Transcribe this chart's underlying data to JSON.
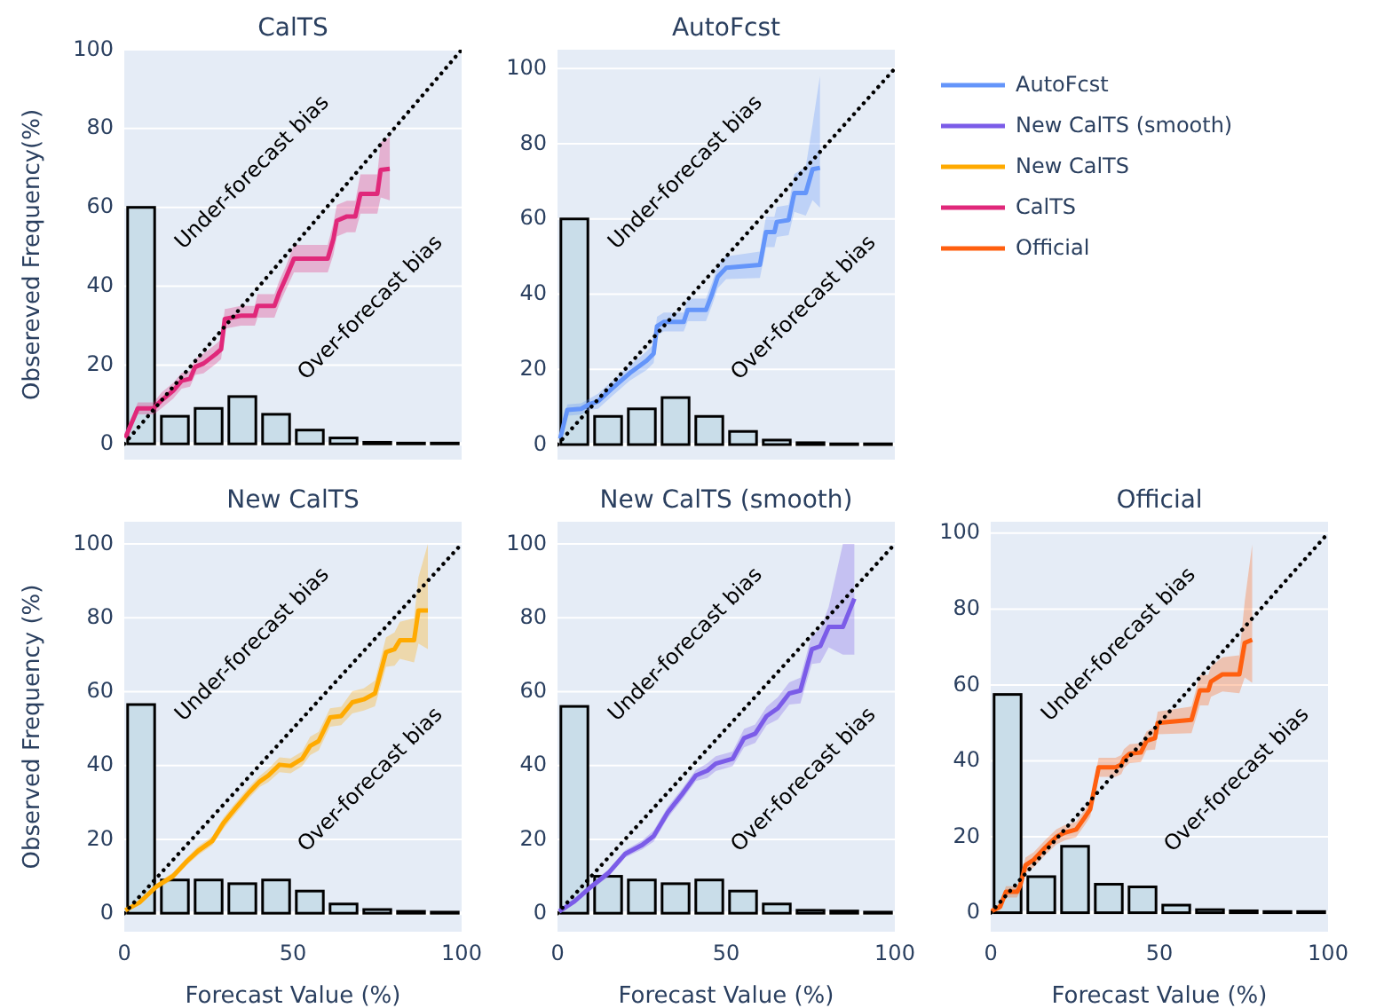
{
  "chart_data": [
    {
      "type": "histogram",
      "title": "CalTS",
      "ylabel": "Obsereved Frequency(%)",
      "bins": [
        0,
        10,
        20,
        30,
        40,
        50,
        60,
        70,
        80,
        90,
        100
      ],
      "values": [
        60,
        7,
        9,
        12,
        7.5,
        3.5,
        1.5,
        0.4,
        0.2,
        0.2
      ],
      "color": "#c9dde9",
      "xlim": [
        0,
        100
      ],
      "ylim": [
        -4,
        100
      ],
      "yticks": [
        0,
        20,
        40,
        60,
        80,
        100
      ],
      "grid": "y",
      "tick_labels": "y",
      "series": [
        {
          "type": "line",
          "name": "CalTS",
          "color": "#e0287a",
          "x": [
            0.3,
            4,
            8.7,
            11,
            14.5,
            17,
            19.5,
            21,
            23.5,
            27,
            28.7,
            29.8,
            34.5,
            38.7,
            39.5,
            44.5,
            46,
            48,
            50.3,
            60.3,
            62,
            63,
            66,
            68.5,
            70,
            75,
            76,
            78.7
          ],
          "values": [
            1.5,
            9,
            9,
            11,
            13.5,
            16,
            16.5,
            19.5,
            20.4,
            22.7,
            24,
            31.7,
            32.5,
            32.5,
            35,
            35,
            38.5,
            42.3,
            47,
            47,
            52,
            56.6,
            57.7,
            57.7,
            63.4,
            63.4,
            69.5,
            69.8
          ],
          "lower": [
            1,
            7.5,
            7.5,
            9,
            11.5,
            14,
            14.5,
            17.5,
            17.9,
            20.2,
            21.5,
            29.2,
            30,
            30,
            32,
            32,
            35.5,
            39.3,
            43.5,
            43.5,
            48,
            52.6,
            53.7,
            53.7,
            58.4,
            58.4,
            62.5,
            61.8
          ],
          "upper": [
            2,
            10.5,
            10.5,
            13,
            15.5,
            18,
            18.5,
            21.5,
            22.9,
            25.2,
            26.5,
            34.2,
            35,
            35,
            38,
            38,
            41.5,
            45.3,
            50.5,
            50.5,
            56,
            60.6,
            61.7,
            61.7,
            68.4,
            68.4,
            76.5,
            77.8
          ]
        },
        {
          "type": "line",
          "color": "#000000",
          "line_style": "dotted",
          "x": [
            0,
            100
          ],
          "values": [
            0,
            100
          ]
        }
      ],
      "annotations": [
        "Under-forecast bias",
        "Over-forecast bias"
      ]
    },
    {
      "type": "histogram",
      "title": "AutoFcst",
      "bins": [
        0,
        10,
        20,
        30,
        40,
        50,
        60,
        70,
        80,
        90,
        100
      ],
      "values": [
        60,
        7.5,
        9.5,
        12.5,
        7.5,
        3.5,
        1.2,
        0.5,
        0.2,
        0.2
      ],
      "color": "#c9dde9",
      "xlim": [
        0,
        100
      ],
      "ylim": [
        -4,
        105
      ],
      "yticks": [
        0,
        20,
        40,
        60,
        80,
        100
      ],
      "grid": "y",
      "tick_labels": "y",
      "legend": "right",
      "series": [
        {
          "type": "line",
          "name": "AutoFcst",
          "color": "#6495fa",
          "x": [
            0.8,
            2.9,
            7,
            9.6,
            12,
            16.3,
            21.4,
            26.4,
            28.5,
            29.5,
            31.5,
            37.4,
            38.6,
            44,
            45.8,
            47.5,
            50,
            60,
            61.8,
            64.3,
            65,
            68.5,
            70.2,
            73.6,
            75.6,
            77.8
          ],
          "values": [
            1.6,
            9.2,
            9.5,
            10.8,
            11.5,
            15,
            19,
            22.3,
            24.2,
            31.5,
            32.6,
            32.6,
            35.8,
            35.8,
            40,
            44.6,
            47,
            47.8,
            56.5,
            56.5,
            59.2,
            59.7,
            66.9,
            66.9,
            73.2,
            73.6
          ],
          "lower": [
            1.1,
            7.7,
            8,
            9.3,
            9.5,
            13,
            17,
            19.8,
            21.7,
            29,
            30.1,
            30.1,
            32.8,
            32.8,
            37,
            41.6,
            44,
            44.3,
            52.5,
            52.5,
            55.2,
            55.7,
            61.9,
            60.9,
            65,
            63
          ],
          "upper": [
            2.1,
            10.7,
            11,
            12.3,
            13.5,
            17,
            21,
            24.8,
            26.7,
            34,
            35.1,
            35.1,
            38.8,
            38.8,
            43,
            47.6,
            50,
            51.3,
            60.5,
            60.5,
            63.2,
            63.7,
            71.9,
            74,
            85,
            98
          ]
        },
        {
          "type": "line",
          "color": "#000000",
          "line_style": "dotted",
          "x": [
            0,
            100
          ],
          "values": [
            0,
            100
          ]
        }
      ],
      "annotations": [
        "Under-forecast bias",
        "Over-forecast bias"
      ]
    },
    {
      "type": "histogram",
      "title": "New CalTS",
      "xlabel": "Forecast Value (%)",
      "ylabel": "Observed Frequency (%)",
      "bins": [
        0,
        10,
        20,
        30,
        40,
        50,
        60,
        70,
        80,
        90,
        100
      ],
      "values": [
        56.5,
        9,
        9,
        8,
        9,
        6,
        2.5,
        1,
        0.5,
        0.3
      ],
      "color": "#c9dde9",
      "xlim": [
        0,
        100
      ],
      "xticks": [
        0,
        50,
        100
      ],
      "ylim": [
        -5,
        106
      ],
      "yticks": [
        0,
        20,
        40,
        60,
        80,
        100
      ],
      "grid": "y",
      "series": [
        {
          "type": "line",
          "name": "New CalTS",
          "color": "#ffaa00",
          "x": [
            0.3,
            4.5,
            9.5,
            14.5,
            18.6,
            21.9,
            26.1,
            29.4,
            32.7,
            36.9,
            40.2,
            42.7,
            46,
            49.3,
            52.7,
            55.1,
            57.6,
            61,
            64.3,
            67.6,
            71,
            74.3,
            77.6,
            80.1,
            81.7,
            85.9,
            87.2,
            90
          ],
          "values": [
            0.8,
            2.9,
            7.2,
            10.1,
            14.1,
            16.9,
            19.6,
            24.4,
            28.1,
            32.6,
            35.7,
            37.3,
            40.2,
            39.9,
            41.8,
            45.3,
            46.6,
            53,
            53.4,
            57.1,
            57.9,
            59.5,
            70.7,
            71.5,
            73.9,
            73.9,
            82,
            82
          ],
          "lower": [
            0.5,
            2.4,
            6.4,
            9.1,
            13.1,
            15.7,
            18.4,
            22.9,
            26.6,
            31.1,
            34.2,
            35.5,
            38.2,
            37.9,
            39.8,
            42.8,
            44.1,
            50.5,
            50.9,
            54.1,
            54.9,
            56,
            66.7,
            67,
            68.9,
            67.9,
            73,
            71.5
          ],
          "upper": [
            1.1,
            3.4,
            8,
            11.1,
            15.1,
            18.1,
            20.8,
            25.9,
            29.6,
            34.1,
            37.2,
            39.1,
            42.2,
            41.9,
            43.8,
            47.8,
            49.1,
            55.5,
            55.9,
            60.1,
            60.9,
            63,
            74.7,
            76,
            78.9,
            79.9,
            91,
            100
          ]
        },
        {
          "type": "line",
          "color": "#000000",
          "line_style": "dotted",
          "x": [
            0,
            100
          ],
          "values": [
            0,
            100
          ]
        }
      ],
      "annotations": [
        "Under-forecast bias",
        "Over-forecast bias"
      ]
    },
    {
      "type": "histogram",
      "title": "New CalTS (smooth)",
      "xlabel": "Forecast Value (%)",
      "bins": [
        0,
        10,
        20,
        30,
        40,
        50,
        60,
        70,
        80,
        90,
        100
      ],
      "values": [
        56,
        10,
        9,
        8,
        9,
        6,
        2.5,
        0.8,
        0.6,
        0.3
      ],
      "color": "#c9dde9",
      "xlim": [
        0,
        100
      ],
      "xticks": [
        0,
        50,
        100
      ],
      "ylim": [
        -5,
        106
      ],
      "yticks": [
        0,
        20,
        40,
        60,
        80,
        100
      ],
      "grid": "y",
      "series": [
        {
          "type": "line",
          "name": "New CalTS (smooth)",
          "color": "#7b5ce8",
          "x": [
            0.5,
            5,
            10,
            15.1,
            20.1,
            25.1,
            28.5,
            32.7,
            36.9,
            41,
            44.4,
            46.9,
            51.9,
            55.3,
            58.6,
            62,
            65.3,
            68.7,
            72,
            75.4,
            77.9,
            80.4,
            84.6,
            88
          ],
          "values": [
            0.5,
            3.2,
            7.2,
            10.9,
            16.1,
            18.5,
            20.9,
            27.3,
            32.2,
            37.3,
            38.6,
            40.5,
            41.8,
            47.4,
            48.6,
            53.4,
            55.5,
            59.5,
            60.3,
            71.5,
            72.3,
            77.5,
            77.5,
            85.2
          ],
          "lower": [
            0.3,
            2.7,
            6.4,
            9.9,
            15.1,
            17.3,
            19.4,
            25.8,
            30.7,
            35.8,
            36.6,
            38.5,
            39.8,
            44.9,
            46.1,
            50.9,
            52.5,
            56.5,
            56.8,
            67.5,
            67.8,
            72,
            70,
            70
          ],
          "upper": [
            0.7,
            3.7,
            8,
            11.9,
            17.1,
            19.7,
            22.4,
            28.8,
            33.7,
            38.8,
            40.6,
            42.5,
            43.8,
            49.9,
            51.1,
            55.9,
            58.5,
            62.5,
            63.8,
            75.5,
            76.8,
            83,
            100,
            100
          ]
        },
        {
          "type": "line",
          "color": "#000000",
          "line_style": "dotted",
          "x": [
            0,
            100
          ],
          "values": [
            0,
            100
          ]
        }
      ],
      "annotations": [
        "Under-forecast bias",
        "Over-forecast bias"
      ]
    },
    {
      "type": "histogram",
      "title": "Official",
      "xlabel": "Forecast Value (%)",
      "bins": [
        0,
        10,
        20,
        30,
        40,
        50,
        60,
        70,
        80,
        90,
        100
      ],
      "values": [
        57.5,
        9.5,
        17.5,
        7.5,
        6.8,
        2,
        0.8,
        0.5,
        0.3,
        0.3
      ],
      "color": "#c9dde9",
      "xlim": [
        0,
        100
      ],
      "xticks": [
        0,
        50,
        100
      ],
      "ylim": [
        -5,
        103
      ],
      "yticks": [
        0,
        20,
        40,
        60,
        80,
        100
      ],
      "grid": "y",
      "series": [
        {
          "type": "line",
          "name": "Official",
          "color": "#ff5f0f",
          "x": [
            0,
            2.8,
            4.5,
            7.8,
            8.7,
            10.3,
            12.8,
            16.2,
            19.5,
            22,
            25.3,
            27.8,
            29.5,
            32,
            37,
            38.7,
            39.5,
            41.2,
            44.5,
            46.2,
            48.7,
            49.5,
            59.5,
            62,
            64.5,
            65.3,
            68.7,
            73.7,
            75.3,
            77.5
          ],
          "values": [
            0.3,
            1.6,
            5.5,
            5.5,
            7,
            12.5,
            14,
            17.2,
            20,
            21.1,
            21.9,
            25,
            27.3,
            38.3,
            38.3,
            39,
            40.6,
            41.9,
            42.2,
            45.3,
            46,
            50,
            50.8,
            58.6,
            58.6,
            60.9,
            62.8,
            62.8,
            71.1,
            71.9
          ],
          "lower": [
            0,
            0.6,
            4,
            4,
            5.5,
            10.5,
            12,
            15.2,
            18,
            19.1,
            19.9,
            23,
            25.3,
            35.8,
            35.8,
            36.5,
            38.1,
            39.4,
            39.7,
            42.8,
            43,
            47,
            47.3,
            54.6,
            54.6,
            56.9,
            58.3,
            57.8,
            62,
            60.6
          ],
          "upper": [
            0.6,
            2.6,
            7,
            7,
            8.5,
            14.5,
            16,
            19.2,
            22,
            23.1,
            23.9,
            27,
            29.3,
            40.8,
            40.8,
            41.5,
            43.1,
            44.4,
            44.7,
            47.8,
            49,
            53,
            54.3,
            62.6,
            62.6,
            64.9,
            67.3,
            67.8,
            82,
            97
          ]
        },
        {
          "type": "line",
          "color": "#000000",
          "line_style": "dotted",
          "x": [
            0,
            100
          ],
          "values": [
            0,
            100
          ]
        }
      ],
      "annotations": [
        "Under-forecast bias",
        "Over-forecast bias"
      ]
    }
  ]
}
